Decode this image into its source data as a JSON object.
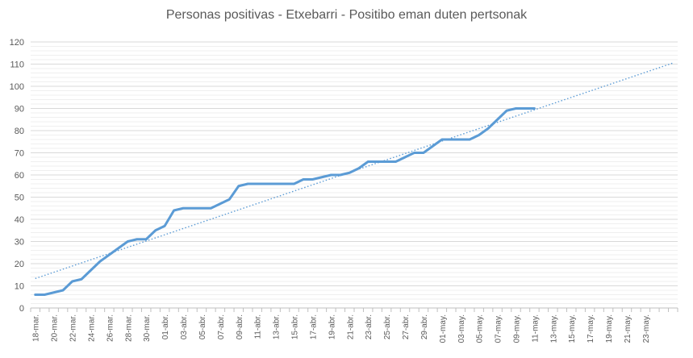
{
  "chart_data": {
    "type": "line",
    "title": "Personas positivas - Etxebarri - Positibo eman duten pertsonak",
    "xlabel": "",
    "ylabel": "",
    "ylim": [
      0,
      120
    ],
    "ytick_step": 10,
    "grid": true,
    "legend": "none",
    "start_date": "18-mar.",
    "x_tick_labels": [
      "18-mar.",
      "20-mar.",
      "22-mar.",
      "24-mar.",
      "26-mar.",
      "28-mar.",
      "30-mar.",
      "01-abr.",
      "03-abr.",
      "05-abr.",
      "07-abr.",
      "09-abr.",
      "11-abr.",
      "13-abr.",
      "15-abr.",
      "17-abr.",
      "19-abr.",
      "21-abr.",
      "23-abr.",
      "25-abr.",
      "27-abr.",
      "29-abr.",
      "01-may.",
      "03-may.",
      "05-may.",
      "07-may.",
      "09-may.",
      "11-may.",
      "13-may.",
      "15-may.",
      "17-may.",
      "19-may.",
      "21-may.",
      "23-may."
    ],
    "series": [
      {
        "color": "#5B9BD5",
        "x": [
          "18-mar.",
          "19-mar.",
          "20-mar.",
          "21-mar.",
          "22-mar.",
          "23-mar.",
          "24-mar.",
          "25-mar.",
          "26-mar.",
          "27-mar.",
          "28-mar.",
          "29-mar.",
          "30-mar.",
          "31-mar.",
          "01-abr.",
          "02-abr.",
          "03-abr.",
          "04-abr.",
          "05-abr.",
          "06-abr.",
          "07-abr.",
          "08-abr.",
          "09-abr.",
          "10-abr.",
          "11-abr.",
          "12-abr.",
          "13-abr.",
          "14-abr.",
          "15-abr.",
          "16-abr.",
          "17-abr.",
          "18-abr.",
          "19-abr.",
          "20-abr.",
          "21-abr.",
          "22-abr.",
          "23-abr.",
          "24-abr.",
          "25-abr.",
          "26-abr.",
          "27-abr.",
          "28-abr.",
          "29-abr.",
          "30-abr.",
          "01-may.",
          "02-may.",
          "03-may.",
          "04-may.",
          "05-may.",
          "06-may.",
          "07-may.",
          "08-may.",
          "09-may.",
          "10-may.",
          "11-may."
        ],
        "values": [
          6,
          6,
          7,
          8,
          12,
          13,
          17,
          21,
          24,
          27,
          30,
          31,
          31,
          35,
          37,
          44,
          45,
          45,
          45,
          45,
          47,
          49,
          55,
          56,
          56,
          56,
          56,
          56,
          56,
          58,
          58,
          59,
          60,
          60,
          61,
          63,
          66,
          66,
          66,
          66,
          68,
          70,
          70,
          73,
          76,
          76,
          76,
          76,
          78,
          81,
          85,
          89,
          90,
          90,
          90
        ]
      }
    ],
    "trendline": {
      "type": "linear",
      "style": "dotted",
      "color": "#5B9BD5",
      "x_range": [
        "18-mar.",
        "26-may."
      ],
      "y_range": [
        13.3,
        110.5
      ]
    }
  }
}
